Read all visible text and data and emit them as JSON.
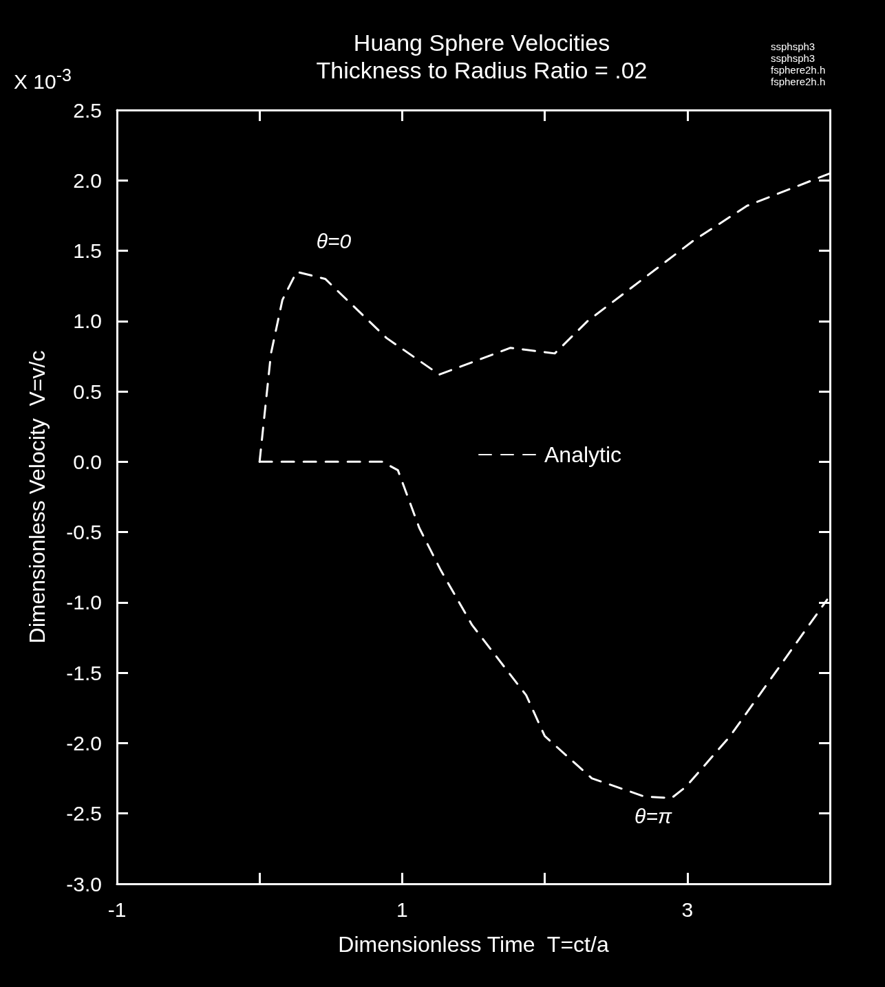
{
  "chart_data": {
    "type": "line",
    "title": "Huang Sphere Velocities",
    "subtitle": "Thickness to Radius Ratio = .02",
    "xlabel": "Dimensionless Time  T=ct/a",
    "ylabel": "Dimensionless Velocity  V=v/c",
    "xlim": [
      -1,
      4
    ],
    "xticks": [
      -1,
      {
        "value": 0,
        "label": null
      },
      1,
      {
        "value": 2,
        "label": null
      },
      3,
      {
        "value": 4,
        "label": null
      }
    ],
    "ylim": [
      -3,
      2.5
    ],
    "yticks": [
      {
        "value": 2.5,
        "label": "2.5"
      },
      {
        "value": 2,
        "label": "2.0"
      },
      {
        "value": 1.5,
        "label": "1.5"
      },
      {
        "value": 1,
        "label": "1.0"
      },
      {
        "value": 0.5,
        "label": "0.5"
      },
      {
        "value": 0,
        "label": "0.0"
      },
      {
        "value": -0.5,
        "label": "-0.5"
      },
      {
        "value": -1,
        "label": "-1.0"
      },
      {
        "value": -1.5,
        "label": "-1.5"
      },
      {
        "value": -2,
        "label": "-2.0"
      },
      {
        "value": -2.5,
        "label": "-2.5"
      },
      {
        "value": -3,
        "label": "-3.0"
      }
    ],
    "series": [
      {
        "name": "Analytic",
        "color": "#ffffff",
        "x": [
          0,
          0.08,
          0.16,
          0.26,
          0.46,
          0.89,
          1.26,
          1.76,
          2.07,
          2.3,
          3.04,
          3.42,
          4.0
        ],
        "values": [
          0,
          0.77,
          1.15,
          1.35,
          1.3,
          0.88,
          0.62,
          0.81,
          0.77,
          1.0,
          1.57,
          1.82,
          2.05
        ]
      },
      {
        "color": "#ffffff",
        "x": [
          0,
          0.86,
          0.97,
          1.12,
          1.27,
          1.49,
          1.87,
          2.0,
          2.33,
          2.7,
          2.89,
          2.99,
          3.3,
          3.98
        ],
        "values": [
          0,
          0,
          -0.06,
          -0.47,
          -0.77,
          -1.16,
          -1.66,
          -1.95,
          -2.25,
          -2.38,
          -2.39,
          -2.31,
          -1.95,
          -0.98
        ]
      }
    ],
    "line_style": "dashed",
    "marker": "none",
    "grid": false,
    "legend": "center",
    "annotations": [
      "X 10$^{-3}$",
      "ssphsph3",
      "ssphsph3",
      "fsphere2h.h",
      "fsphere2h.h",
      "θ=0",
      "θ=π"
    ]
  }
}
